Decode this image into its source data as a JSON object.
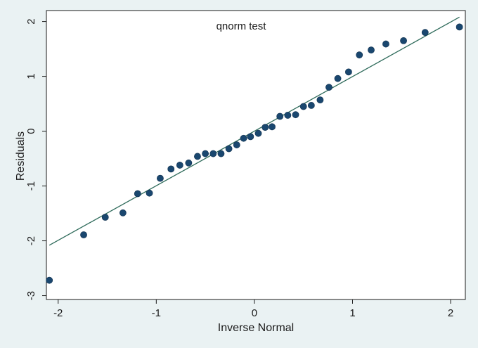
{
  "chart_data": {
    "type": "scatter",
    "title": "qnorm test",
    "xlabel": "Inverse Normal",
    "ylabel": "Residuals",
    "xlim": [
      -2.12,
      2.15
    ],
    "ylim": [
      -3.07,
      2.2
    ],
    "xticks": [
      -2,
      -1,
      0,
      1,
      2
    ],
    "xtick_labels": [
      "-2",
      "-1",
      "0",
      "1",
      "2"
    ],
    "yticks": [
      -3,
      -2,
      -1,
      0,
      1,
      2
    ],
    "ytick_labels": [
      "-3",
      "-2",
      "-1",
      "0",
      "1",
      "2"
    ],
    "grid": false,
    "legend": "none",
    "series": [
      {
        "type": "scatter",
        "points": [
          [
            -2.09,
            -2.72
          ],
          [
            -1.74,
            -1.89
          ],
          [
            -1.52,
            -1.57
          ],
          [
            -1.34,
            -1.49
          ],
          [
            -1.19,
            -1.14
          ],
          [
            -1.07,
            -1.13
          ],
          [
            -0.96,
            -0.86
          ],
          [
            -0.85,
            -0.69
          ],
          [
            -0.76,
            -0.62
          ],
          [
            -0.67,
            -0.58
          ],
          [
            -0.58,
            -0.46
          ],
          [
            -0.5,
            -0.41
          ],
          [
            -0.42,
            -0.41
          ],
          [
            -0.34,
            -0.41
          ],
          [
            -0.26,
            -0.32
          ],
          [
            -0.18,
            -0.25
          ],
          [
            -0.11,
            -0.13
          ],
          [
            -0.04,
            -0.1
          ],
          [
            0.04,
            -0.04
          ],
          [
            0.11,
            0.07
          ],
          [
            0.18,
            0.08
          ],
          [
            0.26,
            0.27
          ],
          [
            0.34,
            0.29
          ],
          [
            0.42,
            0.3
          ],
          [
            0.5,
            0.45
          ],
          [
            0.58,
            0.47
          ],
          [
            0.67,
            0.57
          ],
          [
            0.76,
            0.8
          ],
          [
            0.85,
            0.96
          ],
          [
            0.96,
            1.08
          ],
          [
            1.07,
            1.39
          ],
          [
            1.19,
            1.48
          ],
          [
            1.34,
            1.59
          ],
          [
            1.52,
            1.65
          ],
          [
            1.74,
            1.8
          ],
          [
            2.09,
            1.9
          ]
        ]
      },
      {
        "type": "line",
        "points": [
          [
            -2.09,
            -2.08
          ],
          [
            2.09,
            2.08
          ]
        ]
      }
    ],
    "colors": {
      "background": "#eaf2f3",
      "plot_area": "#ffffff",
      "marker": "#1a476f",
      "line": "#2f6b5b",
      "axis": "#1a1a1a"
    }
  }
}
